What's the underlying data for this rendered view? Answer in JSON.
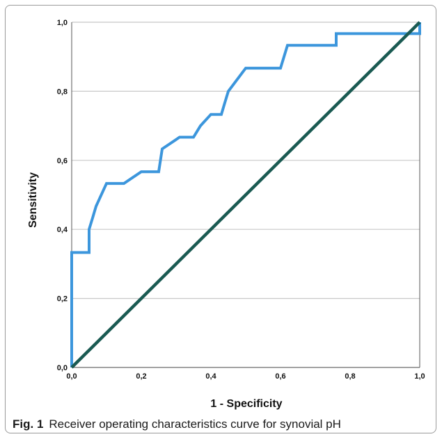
{
  "chart_data": {
    "type": "line",
    "title": "",
    "xlabel": "1 - Specificity",
    "ylabel": "Sensitivity",
    "xlim": [
      0,
      1
    ],
    "ylim": [
      0,
      1
    ],
    "x_ticks": [
      "0,0",
      "0,2",
      "0,4",
      "0,6",
      "0,8",
      "1,0"
    ],
    "y_ticks": [
      "0,0",
      "0,2",
      "0,4",
      "0,6",
      "0,8",
      "1,0"
    ],
    "grid": "horizontal",
    "series": [
      {
        "color": "#3c96dc",
        "x": [
          0.0,
          0.0,
          0.05,
          0.05,
          0.06,
          0.07,
          0.1,
          0.15,
          0.2,
          0.25,
          0.26,
          0.31,
          0.35,
          0.37,
          0.4,
          0.43,
          0.44,
          0.45,
          0.5,
          0.6,
          0.61,
          0.62,
          0.76,
          0.76,
          1.0,
          1.0
        ],
        "y": [
          0.0,
          0.333,
          0.333,
          0.4,
          0.433,
          0.467,
          0.533,
          0.533,
          0.567,
          0.567,
          0.633,
          0.667,
          0.667,
          0.7,
          0.733,
          0.733,
          0.767,
          0.8,
          0.867,
          0.867,
          0.9,
          0.933,
          0.933,
          0.967,
          0.967,
          1.0
        ]
      },
      {
        "color": "#1a5a52",
        "x": [
          0.0,
          1.0
        ],
        "y": [
          0.0,
          1.0
        ]
      }
    ]
  },
  "caption": {
    "label": "Fig. 1",
    "text": "Receiver operating characteristics curve for synovial pH"
  }
}
